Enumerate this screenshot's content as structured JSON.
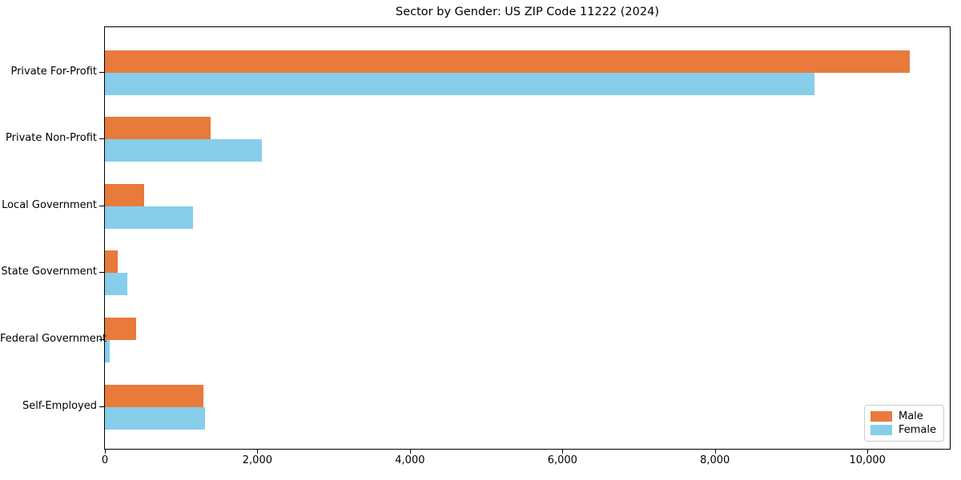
{
  "chart_data": {
    "type": "bar",
    "orientation": "horizontal",
    "title": "Sector by Gender: US ZIP Code 11222 (2024)",
    "categories": [
      "Private For-Profit",
      "Private Non-Profit",
      "Local Government",
      "State Government",
      "Federal Government",
      "Self-Employed"
    ],
    "series": [
      {
        "name": "Male",
        "color": "#e87a3c",
        "values": [
          10550,
          1390,
          510,
          170,
          410,
          1290
        ]
      },
      {
        "name": "Female",
        "color": "#87ceeb",
        "values": [
          9300,
          2060,
          1150,
          295,
          65,
          1310
        ]
      }
    ],
    "xlabel": "",
    "ylabel": "",
    "xlim": [
      0,
      11080
    ],
    "xticks": {
      "values": [
        0,
        2000,
        4000,
        6000,
        8000,
        10000
      ],
      "labels": [
        "0",
        "2,000",
        "4,000",
        "6,000",
        "8,000",
        "10,000"
      ]
    },
    "legend": {
      "position": "lower right"
    },
    "grid": false,
    "background_color": "#ffffff",
    "text_color": "#000000"
  }
}
